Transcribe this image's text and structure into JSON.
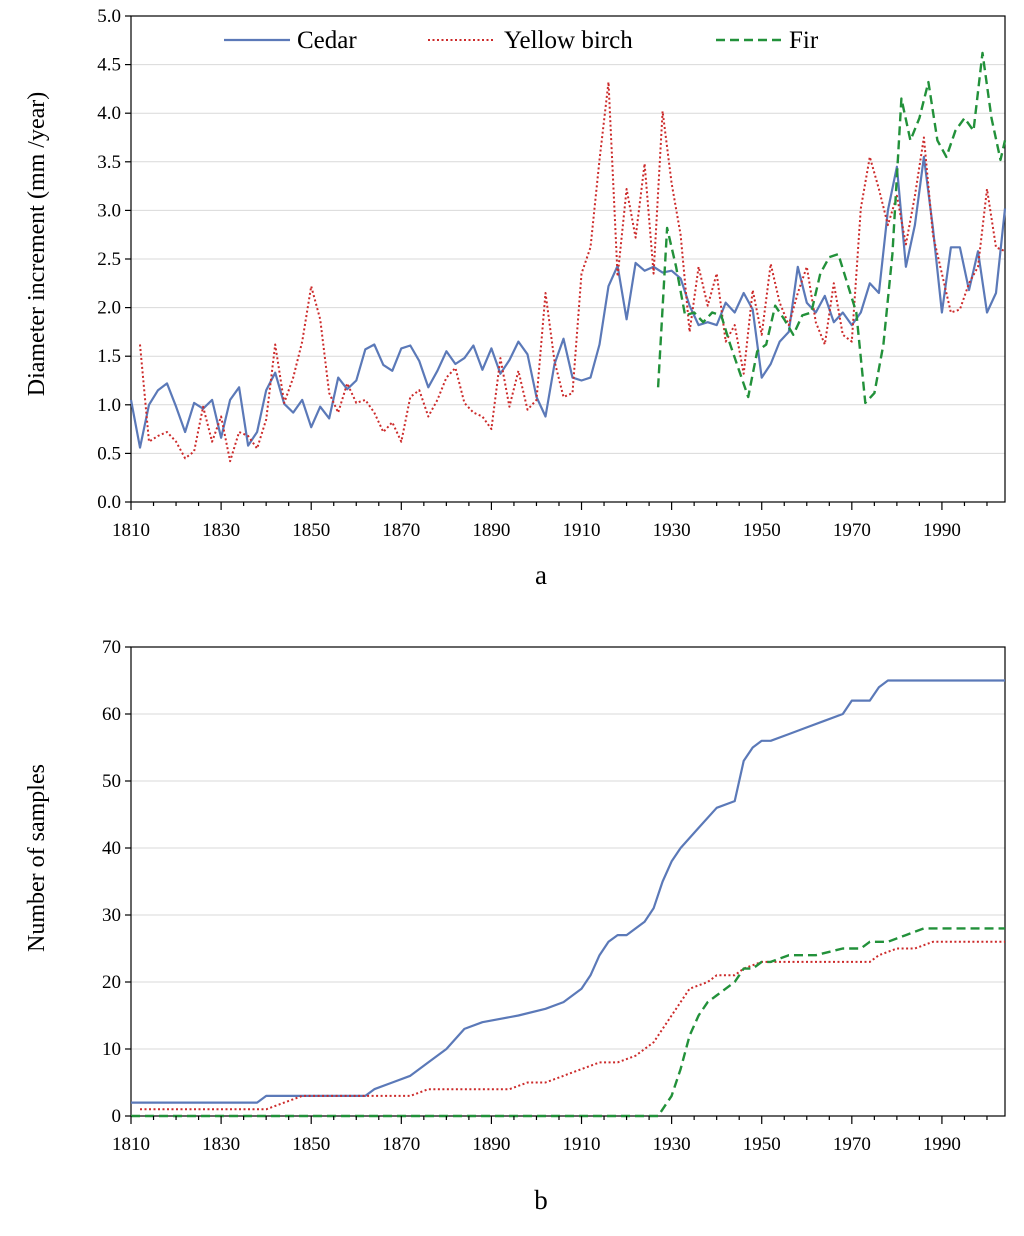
{
  "colors": {
    "cedar": "#5b79b8",
    "yellow_birch": "#cc2a2a",
    "fir": "#22913a"
  },
  "chart_data": [
    {
      "id": "a",
      "type": "line",
      "panel_label": "a",
      "title": "",
      "xlabel": "",
      "ylabel": "Diameter increment (mm /year)",
      "xlim": [
        1810,
        2004
      ],
      "ylim": [
        0,
        5.0
      ],
      "xticks": [
        1810,
        1830,
        1850,
        1870,
        1890,
        1910,
        1930,
        1950,
        1970,
        1990
      ],
      "xtick_labels": [
        "1810",
        "1830",
        "1850",
        "1870",
        "1890",
        "1910",
        "1930",
        "1950",
        "1970",
        "1990"
      ],
      "yticks": [
        0,
        0.5,
        1.0,
        1.5,
        2.0,
        2.5,
        3.0,
        3.5,
        4.0,
        4.5,
        5.0
      ],
      "ytick_labels": [
        "0.0",
        "0.5",
        "1.0",
        "1.5",
        "2.0",
        "2.5",
        "3.0",
        "3.5",
        "4.0",
        "4.5",
        "5.0"
      ],
      "grid": true,
      "legend": "top",
      "legend_entries": [
        "Cedar",
        "Yellow birch",
        "Fir"
      ],
      "series": [
        {
          "name": "Cedar",
          "style": "solid",
          "x": [
            1810,
            1812,
            1814,
            1816,
            1818,
            1820,
            1822,
            1824,
            1826,
            1828,
            1830,
            1832,
            1834,
            1836,
            1838,
            1840,
            1842,
            1844,
            1846,
            1848,
            1850,
            1852,
            1854,
            1856,
            1858,
            1860,
            1862,
            1864,
            1866,
            1868,
            1870,
            1872,
            1874,
            1876,
            1878,
            1880,
            1882,
            1884,
            1886,
            1888,
            1890,
            1892,
            1894,
            1896,
            1898,
            1900,
            1902,
            1904,
            1906,
            1908,
            1910,
            1912,
            1914,
            1916,
            1918,
            1920,
            1922,
            1924,
            1926,
            1928,
            1930,
            1932,
            1934,
            1936,
            1938,
            1940,
            1942,
            1944,
            1946,
            1948,
            1950,
            1952,
            1954,
            1956,
            1958,
            1960,
            1962,
            1964,
            1966,
            1968,
            1970,
            1972,
            1974,
            1976,
            1978,
            1980,
            1982,
            1984,
            1986,
            1988,
            1990,
            1992,
            1994,
            1996,
            1998,
            2000,
            2002,
            2004
          ],
          "values": [
            1.05,
            0.56,
            1.0,
            1.15,
            1.22,
            0.98,
            0.72,
            1.02,
            0.96,
            1.05,
            0.66,
            1.05,
            1.18,
            0.58,
            0.72,
            1.15,
            1.33,
            1.01,
            0.92,
            1.05,
            0.77,
            0.98,
            0.86,
            1.28,
            1.16,
            1.25,
            1.57,
            1.62,
            1.41,
            1.35,
            1.58,
            1.61,
            1.45,
            1.18,
            1.35,
            1.55,
            1.42,
            1.48,
            1.61,
            1.36,
            1.58,
            1.32,
            1.46,
            1.65,
            1.52,
            1.08,
            0.88,
            1.42,
            1.68,
            1.28,
            1.25,
            1.28,
            1.62,
            2.22,
            2.43,
            1.88,
            2.46,
            2.38,
            2.42,
            2.36,
            2.38,
            2.3,
            2.02,
            1.82,
            1.85,
            1.82,
            2.05,
            1.95,
            2.15,
            1.98,
            1.28,
            1.42,
            1.65,
            1.75,
            2.42,
            2.05,
            1.95,
            2.12,
            1.85,
            1.95,
            1.82,
            1.95,
            2.25,
            2.15,
            3.0,
            3.45,
            2.42,
            2.85,
            3.55,
            2.82,
            1.95,
            2.62,
            2.62,
            2.18,
            2.58,
            1.95,
            2.15,
            3.02
          ]
        },
        {
          "name": "Yellow birch",
          "style": "dotted",
          "x": [
            1812,
            1814,
            1816,
            1818,
            1820,
            1822,
            1824,
            1826,
            1828,
            1830,
            1832,
            1834,
            1836,
            1838,
            1840,
            1842,
            1844,
            1846,
            1848,
            1850,
            1852,
            1854,
            1856,
            1858,
            1860,
            1862,
            1864,
            1866,
            1868,
            1870,
            1872,
            1874,
            1876,
            1878,
            1880,
            1882,
            1884,
            1886,
            1888,
            1890,
            1892,
            1894,
            1896,
            1898,
            1900,
            1902,
            1904,
            1906,
            1908,
            1910,
            1912,
            1914,
            1916,
            1918,
            1920,
            1922,
            1924,
            1926,
            1928,
            1930,
            1932,
            1934,
            1936,
            1938,
            1940,
            1942,
            1944,
            1946,
            1948,
            1950,
            1952,
            1954,
            1956,
            1958,
            1960,
            1962,
            1964,
            1966,
            1968,
            1970,
            1972,
            1974,
            1976,
            1978,
            1980,
            1982,
            1984,
            1986,
            1988,
            1990,
            1992,
            1994,
            1996,
            1998,
            2000,
            2002,
            2004
          ],
          "values": [
            1.62,
            0.62,
            0.68,
            0.72,
            0.62,
            0.45,
            0.52,
            0.98,
            0.62,
            0.88,
            0.42,
            0.72,
            0.68,
            0.55,
            0.85,
            1.62,
            1.02,
            1.28,
            1.65,
            2.22,
            1.88,
            1.12,
            0.92,
            1.22,
            1.02,
            1.05,
            0.92,
            0.72,
            0.82,
            0.62,
            1.08,
            1.15,
            0.88,
            1.05,
            1.28,
            1.38,
            1.02,
            0.92,
            0.88,
            0.75,
            1.48,
            0.98,
            1.35,
            0.95,
            1.05,
            2.15,
            1.45,
            1.08,
            1.12,
            2.35,
            2.62,
            3.52,
            4.32,
            2.32,
            3.22,
            2.72,
            3.48,
            2.35,
            4.02,
            3.28,
            2.75,
            1.75,
            2.42,
            2.02,
            2.35,
            1.65,
            1.82,
            1.32,
            2.18,
            1.72,
            2.45,
            2.05,
            1.82,
            2.15,
            2.42,
            1.85,
            1.62,
            2.25,
            1.72,
            1.65,
            3.02,
            3.55,
            3.22,
            2.85,
            3.15,
            2.65,
            3.15,
            3.75,
            2.75,
            2.35,
            1.95,
            1.98,
            2.25,
            2.42,
            3.22,
            2.62,
            2.58
          ]
        },
        {
          "name": "Fir",
          "style": "dashed",
          "x": [
            1927,
            1929,
            1931,
            1933,
            1935,
            1937,
            1939,
            1941,
            1943,
            1945,
            1947,
            1949,
            1951,
            1953,
            1955,
            1957,
            1959,
            1961,
            1963,
            1965,
            1967,
            1969,
            1971,
            1973,
            1975,
            1977,
            1979,
            1981,
            1983,
            1985,
            1987,
            1989,
            1991,
            1993,
            1995,
            1997,
            1999,
            2001,
            2003,
            2004
          ],
          "values": [
            1.18,
            2.82,
            2.42,
            1.92,
            1.95,
            1.85,
            1.95,
            1.92,
            1.62,
            1.35,
            1.08,
            1.55,
            1.62,
            2.02,
            1.88,
            1.72,
            1.92,
            1.95,
            2.35,
            2.52,
            2.55,
            2.25,
            1.95,
            1.02,
            1.12,
            1.62,
            2.55,
            4.15,
            3.72,
            3.95,
            4.32,
            3.72,
            3.55,
            3.82,
            3.95,
            3.82,
            4.62,
            3.95,
            3.52,
            3.72
          ]
        }
      ]
    },
    {
      "id": "b",
      "type": "line",
      "panel_label": "b",
      "title": "",
      "xlabel": "",
      "ylabel": "Number of samples",
      "xlim": [
        1810,
        2004
      ],
      "ylim": [
        0,
        70
      ],
      "xticks": [
        1810,
        1830,
        1850,
        1870,
        1890,
        1910,
        1930,
        1950,
        1970,
        1990
      ],
      "xtick_labels": [
        "1810",
        "1830",
        "1850",
        "1870",
        "1890",
        "1910",
        "1930",
        "1950",
        "1970",
        "1990"
      ],
      "yticks": [
        0,
        10,
        20,
        30,
        40,
        50,
        60,
        70
      ],
      "ytick_labels": [
        "0",
        "10",
        "20",
        "30",
        "40",
        "50",
        "60",
        "70"
      ],
      "grid": true,
      "series": [
        {
          "name": "Cedar",
          "style": "solid",
          "x": [
            1810,
            1838,
            1840,
            1862,
            1864,
            1868,
            1872,
            1876,
            1880,
            1884,
            1888,
            1896,
            1902,
            1906,
            1910,
            1912,
            1914,
            1916,
            1918,
            1920,
            1924,
            1926,
            1928,
            1930,
            1932,
            1936,
            1940,
            1944,
            1946,
            1948,
            1950,
            1952,
            1956,
            1960,
            1964,
            1968,
            1970,
            1974,
            1976,
            1978,
            1980,
            2004
          ],
          "values": [
            2,
            2,
            3,
            3,
            4,
            5,
            6,
            8,
            10,
            13,
            14,
            15,
            16,
            17,
            19,
            21,
            24,
            26,
            27,
            27,
            29,
            31,
            35,
            38,
            40,
            43,
            46,
            47,
            53,
            55,
            56,
            56,
            57,
            58,
            59,
            60,
            62,
            62,
            64,
            65,
            65,
            65
          ]
        },
        {
          "name": "Yellow birch",
          "style": "dotted",
          "x": [
            1812,
            1836,
            1840,
            1844,
            1848,
            1872,
            1876,
            1890,
            1894,
            1898,
            1902,
            1906,
            1910,
            1914,
            1918,
            1922,
            1926,
            1928,
            1930,
            1932,
            1934,
            1938,
            1940,
            1944,
            1946,
            1950,
            1954,
            1958,
            1962,
            1972,
            1974,
            1976,
            1980,
            1984,
            1988,
            2004
          ],
          "values": [
            1,
            1,
            1,
            2,
            3,
            3,
            4,
            4,
            4,
            5,
            5,
            6,
            7,
            8,
            8,
            9,
            11,
            13,
            15,
            17,
            19,
            20,
            21,
            21,
            22,
            23,
            23,
            23,
            23,
            23,
            23,
            24,
            25,
            25,
            26,
            26
          ]
        },
        {
          "name": "Fir",
          "style": "dashed",
          "x": [
            1810,
            1927,
            1928,
            1930,
            1932,
            1934,
            1936,
            1938,
            1940,
            1942,
            1944,
            1946,
            1948,
            1950,
            1952,
            1956,
            1962,
            1968,
            1972,
            1974,
            1978,
            1982,
            1986,
            2004
          ],
          "values": [
            0,
            0,
            1,
            3,
            7,
            12,
            15,
            17,
            18,
            19,
            20,
            22,
            22,
            23,
            23,
            24,
            24,
            25,
            25,
            26,
            26,
            27,
            28,
            28
          ]
        }
      ]
    }
  ]
}
